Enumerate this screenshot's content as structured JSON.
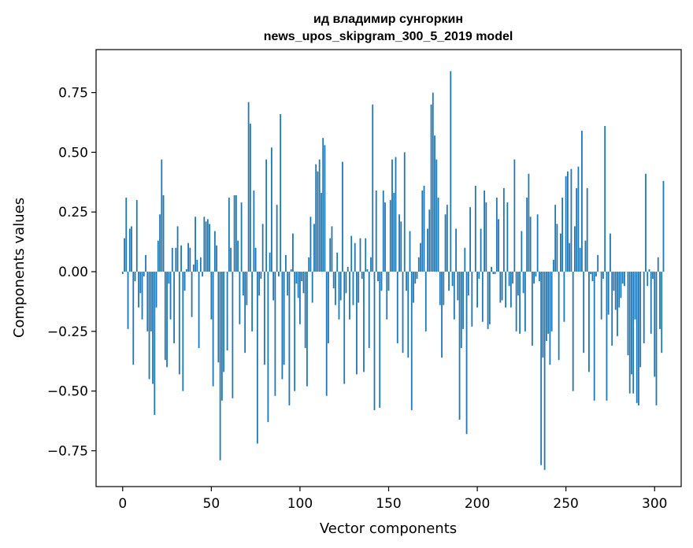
{
  "chart_data": {
    "type": "bar",
    "title_line1": "ид владимир сунгоркин",
    "title_line2": "news_upos_skipgram_300_5_2019 model",
    "xlabel": "Vector components",
    "ylabel": "Components values",
    "xlim": [
      -15,
      315
    ],
    "ylim": [
      -0.9,
      0.93
    ],
    "xticks": [
      0,
      50,
      100,
      150,
      200,
      250,
      300
    ],
    "xtick_labels": [
      "0",
      "50",
      "100",
      "150",
      "200",
      "250",
      "300"
    ],
    "yticks": [
      -0.75,
      -0.5,
      -0.25,
      0.0,
      0.25,
      0.5,
      0.75
    ],
    "ytick_labels": [
      "−0.75",
      "−0.50",
      "−0.25",
      "0.00",
      "0.25",
      "0.50",
      "0.75"
    ],
    "bar_color": "#1f77b4",
    "values": [
      -0.01,
      0.14,
      0.31,
      -0.24,
      0.18,
      0.19,
      -0.39,
      -0.04,
      0.3,
      -0.15,
      -0.09,
      -0.2,
      -0.02,
      0.07,
      -0.25,
      -0.45,
      -0.25,
      -0.47,
      -0.6,
      -0.15,
      0.13,
      0.24,
      0.47,
      0.32,
      -0.37,
      -0.4,
      -0.05,
      -0.2,
      0.1,
      -0.3,
      0.1,
      0.19,
      -0.43,
      0.11,
      -0.5,
      -0.08,
      0.01,
      0.12,
      0.1,
      -0.19,
      0.03,
      0.23,
      0.05,
      -0.32,
      0.06,
      -0.02,
      0.23,
      0.21,
      0.22,
      0.2,
      -0.2,
      -0.48,
      0.17,
      0.11,
      -0.38,
      -0.79,
      -0.54,
      -0.42,
      0.0,
      -0.33,
      0.31,
      0.1,
      -0.53,
      0.32,
      0.32,
      0.13,
      -0.22,
      0.29,
      -0.1,
      -0.34,
      -0.14,
      0.71,
      0.62,
      -0.25,
      0.34,
      0.1,
      -0.72,
      -0.1,
      -0.03,
      0.2,
      -0.39,
      0.47,
      -0.63,
      0.08,
      0.52,
      -0.12,
      -0.52,
      0.28,
      -0.02,
      0.66,
      -0.45,
      -0.39,
      0.07,
      -0.1,
      -0.56,
      0.01,
      0.16,
      -0.5,
      -0.05,
      -0.11,
      -0.22,
      -0.04,
      -0.09,
      -0.32,
      -0.48,
      0.06,
      0.23,
      -0.13,
      0.2,
      0.45,
      0.42,
      0.47,
      0.33,
      0.56,
      0.53,
      -0.52,
      -0.3,
      0.14,
      0.19,
      -0.07,
      -0.14,
      0.08,
      -0.2,
      -0.12,
      0.46,
      -0.47,
      -0.09,
      0.02,
      -0.2,
      0.15,
      -0.14,
      0.12,
      -0.43,
      -0.13,
      0.14,
      -0.03,
      -0.42,
      0.14,
      0.01,
      -0.32,
      0.06,
      0.7,
      -0.58,
      0.34,
      -0.04,
      -0.57,
      -0.08,
      0.34,
      0.29,
      -0.2,
      -0.08,
      0.3,
      0.47,
      0.33,
      0.48,
      -0.3,
      0.24,
      0.21,
      -0.34,
      0.5,
      -0.08,
      -0.36,
      0.17,
      -0.58,
      -0.13,
      -0.05,
      -0.03,
      0.06,
      0.12,
      0.34,
      0.36,
      -0.25,
      0.18,
      0.26,
      0.7,
      0.75,
      0.57,
      0.47,
      0.31,
      -0.14,
      -0.36,
      -0.14,
      0.24,
      0.28,
      -0.08,
      0.84,
      -0.06,
      -0.2,
      0.18,
      -0.12,
      -0.62,
      -0.32,
      -0.24,
      0.1,
      -0.68,
      -0.1,
      0.27,
      -0.23,
      0.0,
      0.36,
      -0.15,
      -0.03,
      0.18,
      -0.21,
      0.34,
      0.29,
      -0.24,
      -0.22,
      0.02,
      -0.01,
      -0.01,
      0.31,
      0.22,
      -0.13,
      -0.12,
      0.35,
      -0.15,
      0.29,
      -0.06,
      -0.15,
      -0.05,
      0.47,
      -0.25,
      -0.1,
      -0.26,
      0.17,
      -0.09,
      -0.25,
      0.31,
      0.41,
      0.23,
      -0.31,
      -0.05,
      -0.02,
      0.24,
      -0.04,
      -0.81,
      -0.36,
      -0.83,
      -0.29,
      -0.26,
      -0.39,
      -0.25,
      0.05,
      0.28,
      0.2,
      -0.37,
      0.16,
      0.31,
      -0.21,
      0.4,
      0.42,
      0.12,
      0.43,
      -0.5,
      0.19,
      0.35,
      0.44,
      0.1,
      0.59,
      -0.34,
      0.13,
      0.35,
      -0.42,
      -0.01,
      -0.04,
      -0.54,
      -0.02,
      0.07,
      0.0,
      -0.2,
      -0.03,
      0.61,
      -0.54,
      -0.18,
      0.16,
      -0.31,
      -0.08,
      -0.16,
      -0.27,
      -0.15,
      -0.11,
      -0.05,
      -0.06,
      0.0,
      -0.35,
      -0.51,
      -0.43,
      -0.51,
      -0.2,
      -0.55,
      -0.56,
      -0.4,
      0.0,
      -0.3,
      0.41,
      -0.06,
      0.01,
      -0.26,
      -0.03,
      -0.44,
      -0.56,
      0.06,
      -0.24,
      -0.34,
      0.38
    ]
  }
}
